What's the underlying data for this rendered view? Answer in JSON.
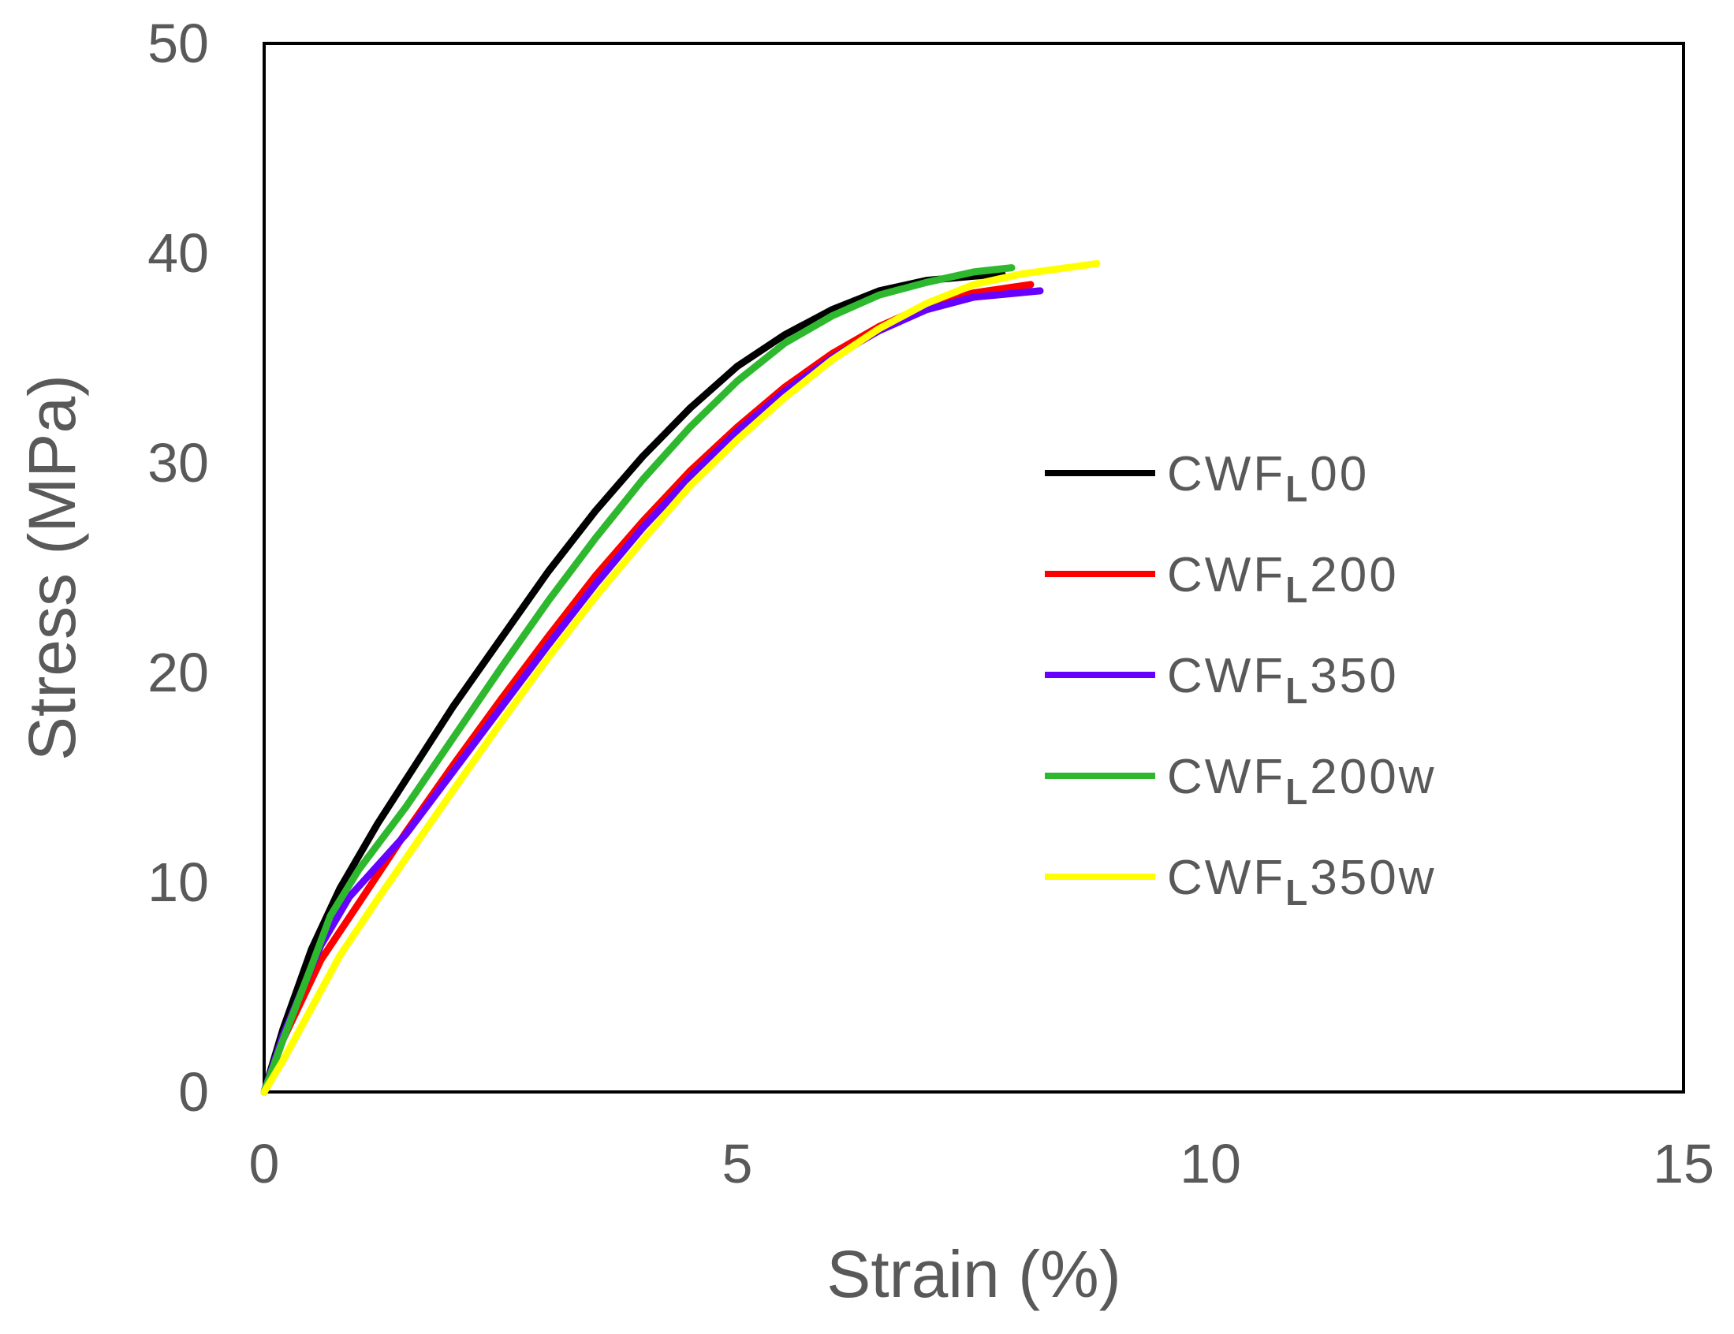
{
  "chart_data": {
    "type": "line",
    "title": "",
    "xlabel": "Strain (%)",
    "ylabel": "Stress (MPa)",
    "xlim": [
      0,
      15
    ],
    "ylim": [
      0,
      50
    ],
    "xticks": [
      0,
      5,
      10,
      15
    ],
    "yticks": [
      0,
      10,
      20,
      30,
      40,
      50
    ],
    "xtick_labels": [
      "0",
      "5",
      "10",
      "15"
    ],
    "ytick_labels": [
      "0",
      "10",
      "20",
      "30",
      "40",
      "50"
    ],
    "grid": false,
    "legend_position": "right-center",
    "series": [
      {
        "name": "CWFL00",
        "label_prefix": "CWF",
        "label_sub": "L",
        "label_suffix": "00",
        "color": "#000000",
        "x": [
          0,
          0.2,
          0.5,
          0.8,
          1.2,
          1.6,
          2,
          2.5,
          3,
          3.5,
          4,
          4.5,
          5,
          5.5,
          6,
          6.5,
          7,
          7.5,
          7.8
        ],
        "y": [
          0,
          3,
          6.8,
          9.7,
          12.8,
          15.6,
          18.4,
          21.6,
          24.8,
          27.7,
          30.3,
          32.6,
          34.6,
          36.1,
          37.3,
          38.2,
          38.7,
          38.9,
          39.0
        ]
      },
      {
        "name": "CWFL200",
        "label_prefix": "CWF",
        "label_sub": "L",
        "label_suffix": "200",
        "color": "#ff0000",
        "x": [
          0,
          0.2,
          0.6,
          1,
          1.5,
          2,
          2.5,
          3,
          3.5,
          4,
          4.5,
          5,
          5.5,
          6,
          6.5,
          7,
          7.5,
          8.1
        ],
        "y": [
          0,
          2.5,
          6.3,
          9.0,
          12.4,
          15.6,
          18.7,
          21.7,
          24.6,
          27.2,
          29.6,
          31.7,
          33.6,
          35.2,
          36.5,
          37.5,
          38.1,
          38.5
        ]
      },
      {
        "name": "CWFL350",
        "label_prefix": "CWF",
        "label_sub": "L",
        "label_suffix": "350",
        "color": "#6600ff",
        "x": [
          0,
          0.2,
          0.6,
          0.9,
          1.5,
          2,
          2.5,
          3,
          3.5,
          4,
          4.5,
          5,
          5.5,
          6,
          6.5,
          7,
          7.5,
          8.2
        ],
        "y": [
          0,
          2.7,
          7.0,
          9.3,
          12.3,
          15.3,
          18.3,
          21.3,
          24.2,
          26.9,
          29.3,
          31.5,
          33.4,
          35.0,
          36.3,
          37.3,
          37.9,
          38.2
        ]
      },
      {
        "name": "CWFL200w",
        "label_prefix": "CWF",
        "label_sub": "L",
        "label_suffix": "200w",
        "color": "#2eb82e",
        "x": [
          0,
          0.2,
          0.5,
          0.7,
          1,
          1.5,
          2,
          2.5,
          3,
          3.5,
          4,
          4.5,
          5,
          5.5,
          6,
          6.5,
          7,
          7.5,
          7.9
        ],
        "y": [
          0,
          2.5,
          6.0,
          8.4,
          10.6,
          13.6,
          16.9,
          20.2,
          23.4,
          26.4,
          29.2,
          31.7,
          33.9,
          35.7,
          37.0,
          38.0,
          38.6,
          39.1,
          39.3
        ]
      },
      {
        "name": "CWFL350w",
        "label_prefix": "CWF",
        "label_sub": "L",
        "label_suffix": "350w",
        "color": "#ffff00",
        "x": [
          0,
          0.2,
          0.5,
          0.8,
          1.2,
          1.6,
          2,
          2.5,
          3,
          3.5,
          4,
          4.5,
          5,
          5.5,
          6,
          6.5,
          7,
          7.5,
          8,
          8.8
        ],
        "y": [
          0,
          1.5,
          4.0,
          6.5,
          9.2,
          11.8,
          14.4,
          17.6,
          20.7,
          23.6,
          26.3,
          28.9,
          31.1,
          33.1,
          34.9,
          36.4,
          37.6,
          38.5,
          39.0,
          39.5
        ]
      }
    ]
  }
}
